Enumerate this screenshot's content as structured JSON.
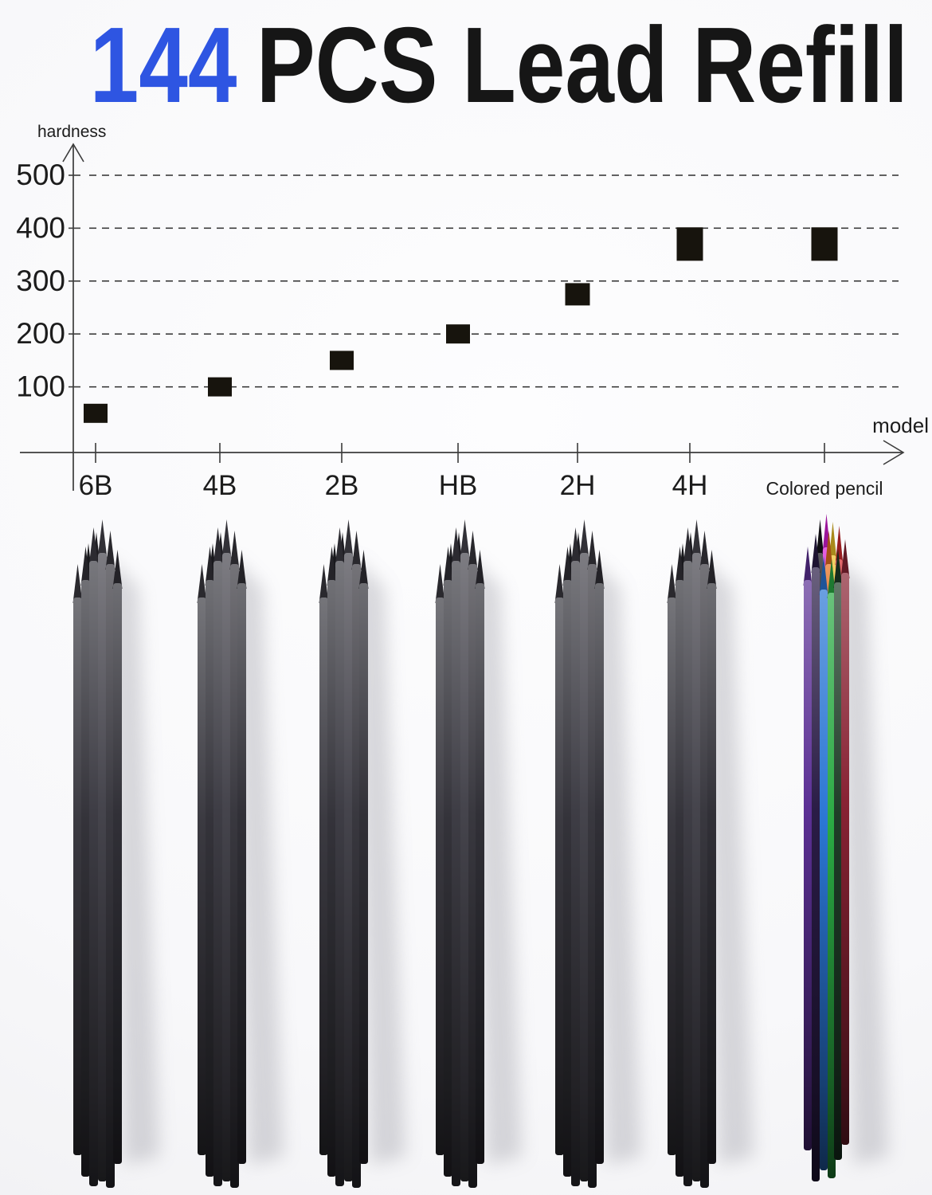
{
  "title": {
    "count": "144",
    "text": "PCS Lead Refill",
    "accent_color": "#2e55e2",
    "text_color": "#161616"
  },
  "chart_data": {
    "type": "scatter",
    "title": "",
    "xlabel": "model",
    "ylabel": "hardness",
    "categories": [
      "6B",
      "4B",
      "2B",
      "HB",
      "2H",
      "4H",
      "Colored pencil"
    ],
    "values": [
      50,
      100,
      150,
      200,
      275,
      370,
      370
    ],
    "value_ranges": {
      "4H": [
        345,
        400
      ],
      "Colored pencil": [
        345,
        400
      ]
    },
    "yticks": [
      100,
      200,
      300,
      400,
      500
    ],
    "ylim": [
      0,
      560
    ],
    "grid": "horizontal-dashed",
    "legend": "none",
    "marker": "black-square",
    "marker_color": "#17140d",
    "axis_color": "#3c3c3c"
  },
  "bundles": {
    "graphite_labels": [
      "6B",
      "4B",
      "2B",
      "HB",
      "2H",
      "4H"
    ],
    "colored_label": "Colored pencil",
    "graphite_color": "#38373e",
    "colored_colors": [
      "#5c3095",
      "#2a1c46",
      "#2b76d4",
      "#2aa943",
      "#1f3d28",
      "#882334",
      "#d81ed6",
      "#ecc028",
      "#e56f1e",
      "#d2292f",
      "#141318"
    ],
    "background": "#f7f7f9"
  }
}
